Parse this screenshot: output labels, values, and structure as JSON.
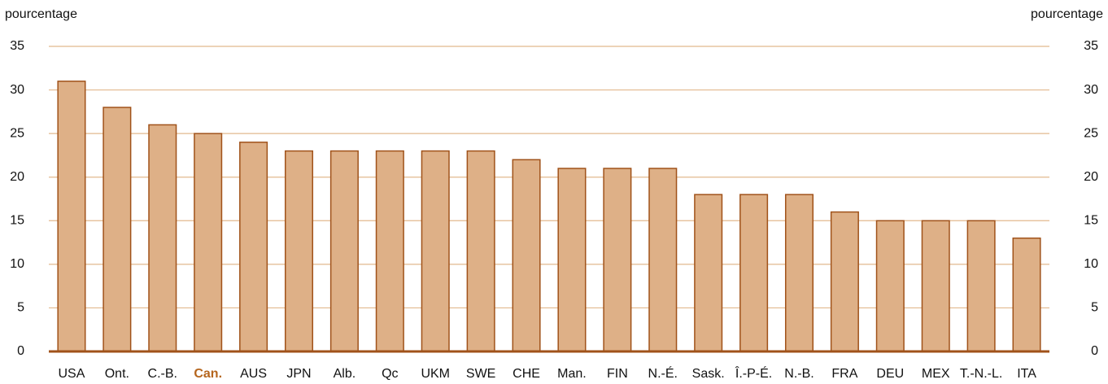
{
  "chart_data": {
    "type": "bar",
    "ylabel": "pourcentage",
    "y2label": "pourcentage",
    "categories": [
      "USA",
      "Ont.",
      "C.-B.",
      "Can.",
      "AUS",
      "JPN",
      "Alb.",
      "Qc",
      "UKM",
      "SWE",
      "CHE",
      "Man.",
      "FIN",
      "N.-É.",
      "Sask.",
      "Î.-P-É.",
      "N.-B.",
      "FRA",
      "DEU",
      "MEX",
      "T.-N.-L.",
      "ITA"
    ],
    "values": [
      31,
      28,
      26,
      25,
      24,
      23,
      23,
      23,
      23,
      23,
      22,
      21,
      21,
      21,
      18,
      18,
      18,
      16,
      15,
      15,
      15,
      13
    ],
    "color": "#deb087",
    "edge_color": "#a0521a",
    "highlight_index": 3,
    "highlight_color": "#b5651d",
    "ylim": [
      0,
      35
    ],
    "yticks": [
      0,
      5,
      10,
      15,
      20,
      25,
      30,
      35
    ],
    "y2lim": [
      0,
      35
    ],
    "y2ticks": [
      0,
      5,
      10,
      15,
      20,
      25,
      30,
      35
    ],
    "grid": true
  }
}
